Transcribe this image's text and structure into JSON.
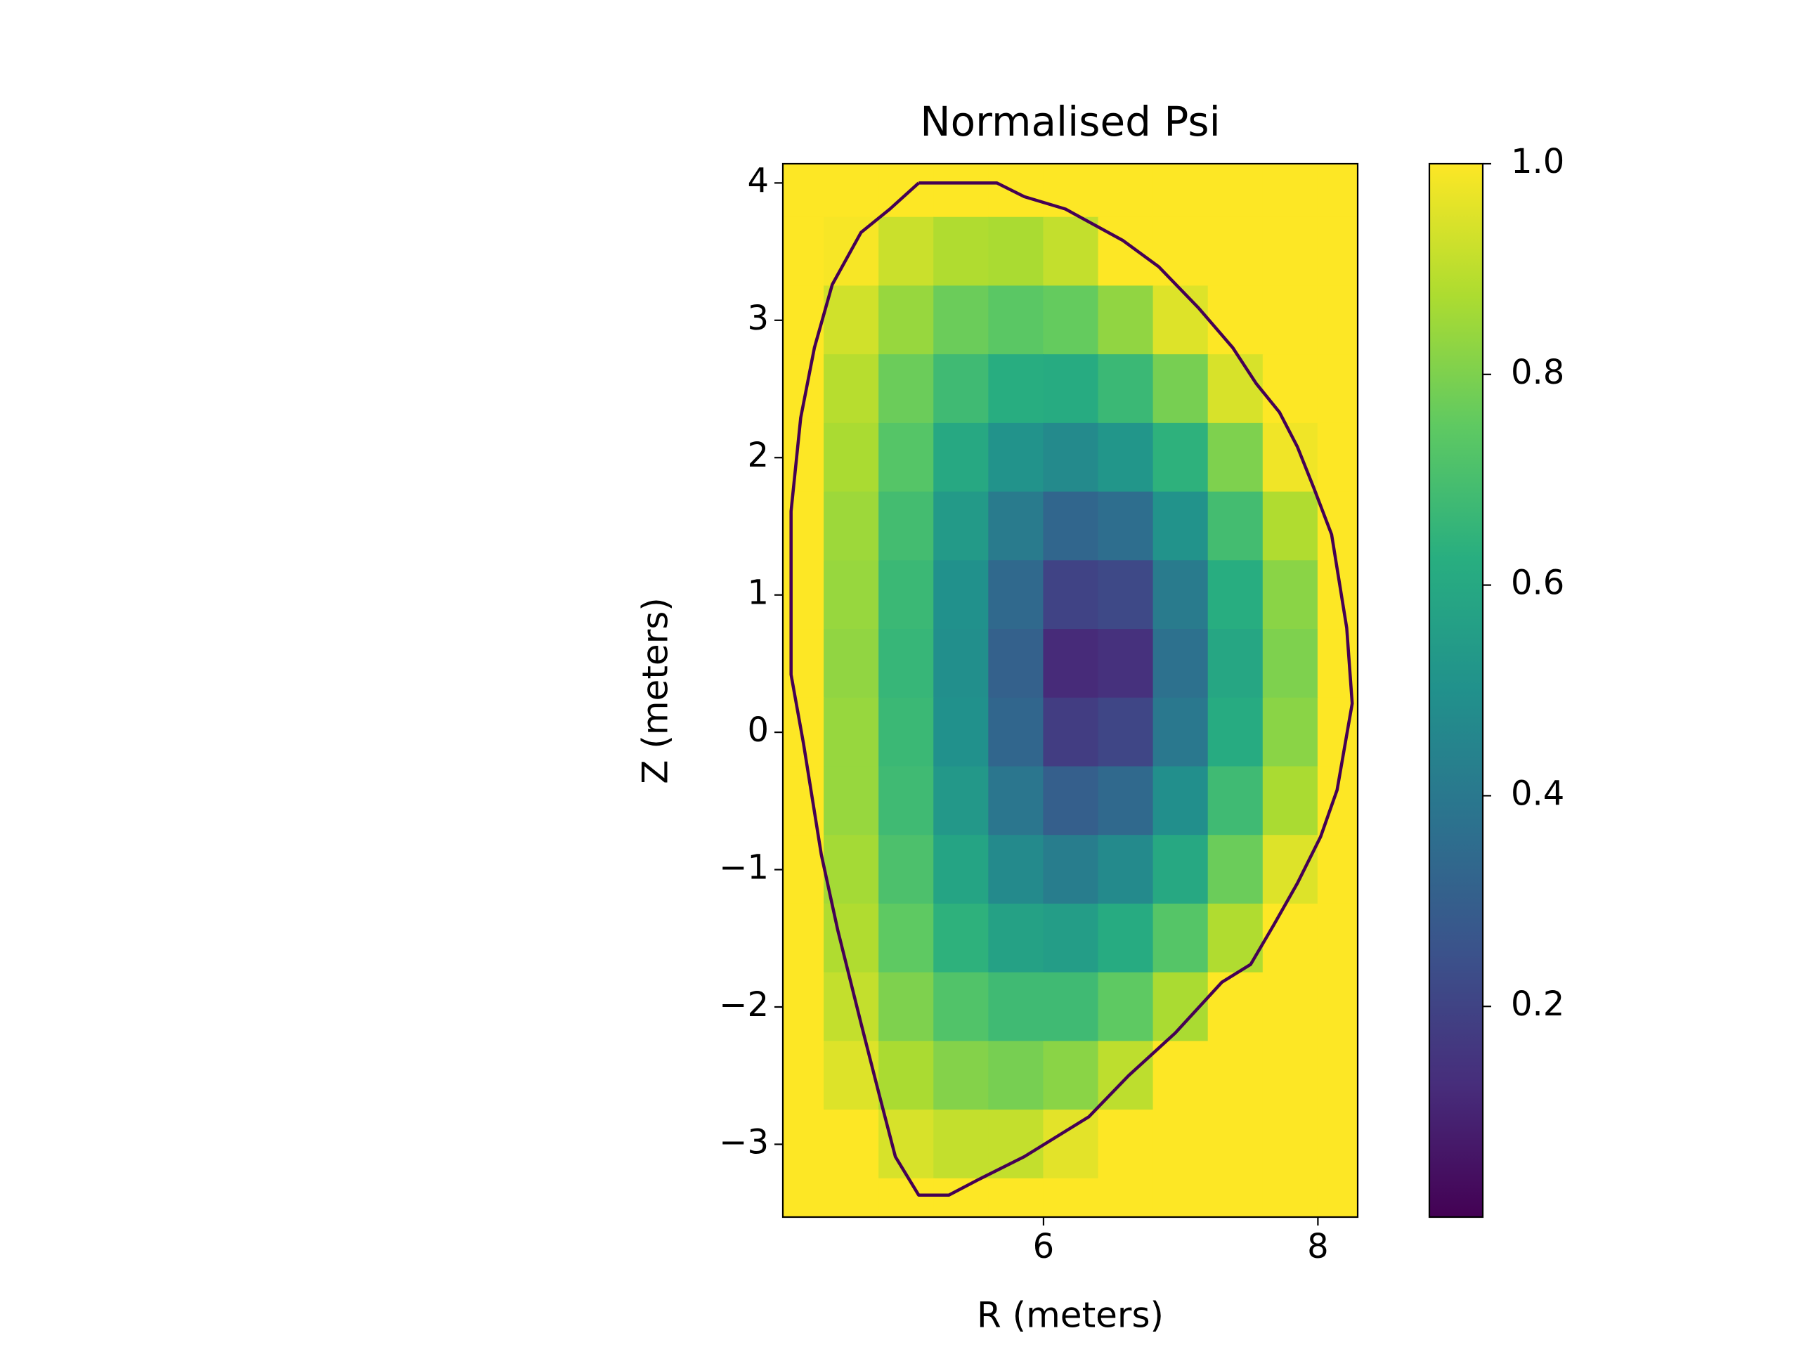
{
  "chart_data": {
    "type": "heatmap",
    "title": "Normalised Psi",
    "xlabel": "R (meters)",
    "ylabel": "Z (meters)",
    "x": [
      4.2,
      4.6,
      5.0,
      5.4,
      5.8,
      6.2,
      6.6,
      7.0,
      7.4,
      7.8,
      8.2
    ],
    "y": [
      4.0,
      3.5,
      3.0,
      2.5,
      2.0,
      1.5,
      1.0,
      0.5,
      0.0,
      -0.5,
      -1.0,
      -1.5,
      -2.0,
      -2.5,
      -3.0,
      -3.5
    ],
    "z": [
      [
        1,
        1,
        1,
        1,
        1,
        1,
        1,
        1,
        1,
        1,
        1
      ],
      [
        1,
        0.99,
        0.92,
        0.88,
        0.87,
        0.91,
        1,
        1,
        1,
        1,
        1
      ],
      [
        1,
        0.93,
        0.84,
        0.77,
        0.74,
        0.76,
        0.83,
        0.95,
        1,
        1,
        1
      ],
      [
        1,
        0.89,
        0.77,
        0.68,
        0.62,
        0.61,
        0.67,
        0.79,
        0.94,
        1,
        1
      ],
      [
        1,
        0.87,
        0.73,
        0.6,
        0.51,
        0.47,
        0.52,
        0.64,
        0.8,
        0.98,
        1
      ],
      [
        1,
        0.85,
        0.69,
        0.54,
        0.41,
        0.33,
        0.36,
        0.51,
        0.69,
        0.88,
        1
      ],
      [
        1,
        0.84,
        0.67,
        0.5,
        0.34,
        0.2,
        0.22,
        0.41,
        0.62,
        0.82,
        1
      ],
      [
        1,
        0.83,
        0.66,
        0.49,
        0.31,
        0.12,
        0.14,
        0.37,
        0.59,
        0.8,
        1
      ],
      [
        1,
        0.84,
        0.67,
        0.5,
        0.33,
        0.18,
        0.21,
        0.4,
        0.61,
        0.82,
        1
      ],
      [
        1,
        0.84,
        0.68,
        0.53,
        0.39,
        0.3,
        0.34,
        0.49,
        0.68,
        0.87,
        1
      ],
      [
        1,
        0.86,
        0.71,
        0.58,
        0.47,
        0.42,
        0.47,
        0.6,
        0.77,
        0.95,
        1
      ],
      [
        1,
        0.88,
        0.75,
        0.64,
        0.57,
        0.55,
        0.61,
        0.73,
        0.88,
        1,
        1
      ],
      [
        1,
        0.91,
        0.8,
        0.72,
        0.68,
        0.68,
        0.75,
        0.87,
        1,
        1,
        1
      ],
      [
        1,
        0.95,
        0.87,
        0.81,
        0.79,
        0.82,
        0.9,
        1,
        1,
        1,
        1
      ],
      [
        1,
        1,
        0.94,
        0.91,
        0.91,
        0.96,
        1,
        1,
        1,
        1,
        1
      ],
      [
        1,
        1,
        1,
        1,
        1,
        1,
        1,
        1,
        1,
        1,
        1
      ]
    ],
    "xlim": [
      4.1,
      8.29
    ],
    "ylim": [
      -3.53,
      4.14
    ],
    "xticks": [
      6,
      8
    ],
    "yticks": [
      {
        "value": -3,
        "label": "−3"
      },
      {
        "value": -2,
        "label": "−2"
      },
      {
        "value": -1,
        "label": "−1"
      },
      0,
      1,
      2,
      3,
      4
    ],
    "colormap": "viridis",
    "clim": [
      0,
      1
    ],
    "cticks": [
      0.2,
      0.4,
      0.6,
      0.8,
      {
        "value": 1,
        "label": "1.0"
      }
    ],
    "contour": {
      "color": "#440154",
      "x": [
        5.09,
        5.66,
        5.86,
        6.16,
        6.58,
        6.84,
        7.13,
        7.38,
        7.55,
        7.72,
        7.85,
        7.97,
        8.1,
        8.21,
        8.25,
        8.14,
        8.02,
        7.85,
        7.68,
        7.51,
        7.3,
        6.96,
        6.62,
        6.33,
        5.86,
        5.52,
        5.31,
        5.09,
        4.92,
        4.8,
        4.67,
        4.5,
        4.38,
        4.25,
        4.16,
        4.16,
        4.23,
        4.33,
        4.46,
        4.67,
        4.88,
        5.09
      ],
      "y": [
        4.0,
        4.0,
        3.9,
        3.81,
        3.58,
        3.39,
        3.09,
        2.8,
        2.54,
        2.33,
        2.08,
        1.78,
        1.44,
        0.76,
        0.21,
        -0.42,
        -0.76,
        -1.1,
        -1.4,
        -1.69,
        -1.82,
        -2.19,
        -2.5,
        -2.8,
        -3.09,
        -3.26,
        -3.37,
        -3.37,
        -3.09,
        -2.63,
        -2.12,
        -1.44,
        -0.89,
        -0.08,
        0.42,
        1.61,
        2.29,
        2.8,
        3.26,
        3.64,
        3.81,
        4.0
      ]
    }
  }
}
